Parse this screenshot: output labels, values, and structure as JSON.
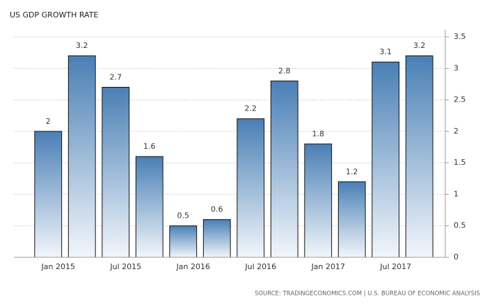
{
  "chart_data": {
    "type": "bar",
    "title": "US GDP GROWTH RATE",
    "source": "SOURCE: TRADINGECONOMICS.COM | U.S. BUREAU OF ECONOMIC ANALYSIS",
    "categories": [
      "Jan 2015",
      null,
      "Jul 2015",
      null,
      "Jan 2016",
      null,
      "Jul 2016",
      null,
      "Jan 2017",
      null,
      "Jul 2017",
      null
    ],
    "values": [
      2,
      3.2,
      2.7,
      1.6,
      0.5,
      0.6,
      2.2,
      2.8,
      1.8,
      1.2,
      3.1,
      3.2
    ],
    "color": "#4a7fb5",
    "ylim": [
      0,
      3.5
    ],
    "yticks": [
      0,
      0.5,
      1,
      1.5,
      2,
      2.5,
      3,
      3.5
    ],
    "grid": true
  }
}
